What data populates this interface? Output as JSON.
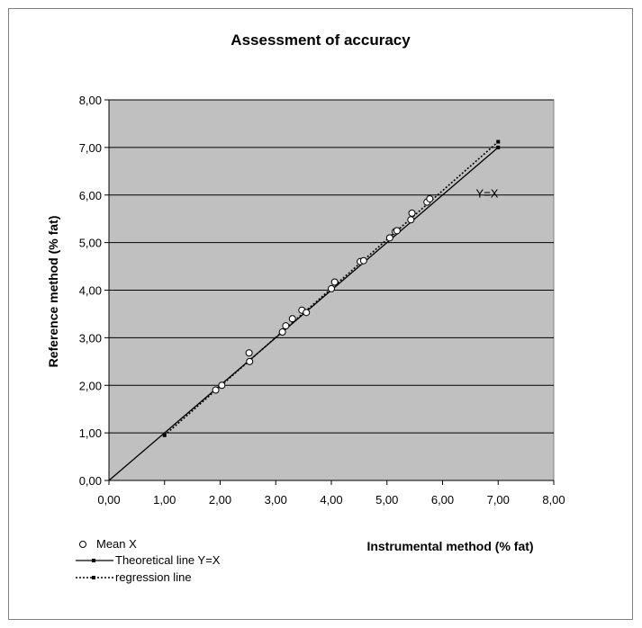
{
  "chart_data": {
    "type": "scatter",
    "title": "Assessment of accuracy",
    "xlabel": "Instrumental  method (% fat)",
    "ylabel": "Reference method (% fat)",
    "xlim": [
      0,
      8
    ],
    "ylim": [
      0,
      8
    ],
    "x_ticks": [
      "0,00",
      "1,00",
      "2,00",
      "3,00",
      "4,00",
      "5,00",
      "6,00",
      "7,00",
      "8,00"
    ],
    "y_ticks": [
      "0,00",
      "1,00",
      "2,00",
      "3,00",
      "4,00",
      "5,00",
      "6,00",
      "7,00",
      "8,00"
    ],
    "grid": "horizontal",
    "plot_background": "#c0c0c0",
    "annotation": "Y=X",
    "legend_position": "bottom-left",
    "series": [
      {
        "name": "Mean X",
        "kind": "points",
        "marker": "open-circle",
        "points": [
          [
            1.92,
            1.9
          ],
          [
            2.03,
            2.0
          ],
          [
            2.52,
            2.68
          ],
          [
            2.53,
            2.5
          ],
          [
            3.12,
            3.12
          ],
          [
            3.18,
            3.25
          ],
          [
            3.3,
            3.4
          ],
          [
            3.47,
            3.58
          ],
          [
            3.55,
            3.53
          ],
          [
            4.0,
            4.03
          ],
          [
            4.06,
            4.17
          ],
          [
            4.52,
            4.6
          ],
          [
            4.58,
            4.62
          ],
          [
            5.05,
            5.1
          ],
          [
            5.15,
            5.23
          ],
          [
            5.18,
            5.25
          ],
          [
            5.43,
            5.48
          ],
          [
            5.45,
            5.62
          ],
          [
            5.72,
            5.85
          ],
          [
            5.77,
            5.92
          ]
        ]
      },
      {
        "name": "Theoretical line Y=X",
        "kind": "line",
        "style": "solid",
        "points": [
          [
            0,
            0
          ],
          [
            7.0,
            7.0
          ]
        ]
      },
      {
        "name": "regression line",
        "kind": "line",
        "style": "dotted",
        "points": [
          [
            1.0,
            0.95
          ],
          [
            7.0,
            7.12
          ]
        ]
      }
    ]
  }
}
